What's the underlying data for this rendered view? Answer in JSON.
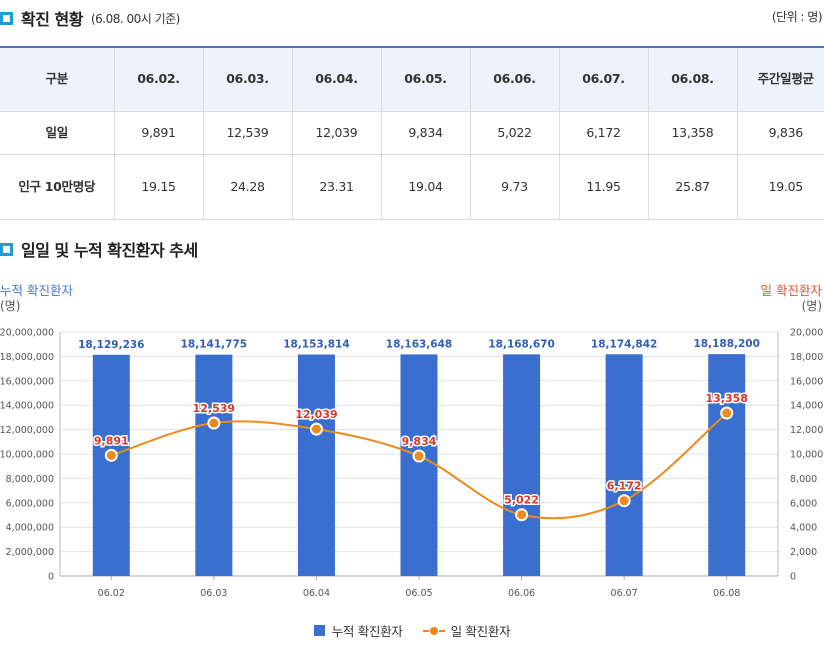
{
  "section1": {
    "title": "확진 현황",
    "subtitle": "(6.08. 00시 기준)",
    "unit": "(단위 : 명)"
  },
  "table": {
    "headers": [
      "구분",
      "06.02.",
      "06.03.",
      "06.04.",
      "06.05.",
      "06.06.",
      "06.07.",
      "06.08.",
      "주간일평균"
    ],
    "rows": [
      {
        "label": "일일",
        "values": [
          "9,891",
          "12,539",
          "12,039",
          "9,834",
          "5,022",
          "6,172",
          "13,358",
          "9,836"
        ]
      },
      {
        "label": "인구 10만명당",
        "values": [
          "19.15",
          "24.28",
          "23.31",
          "19.04",
          "9.73",
          "11.95",
          "25.87",
          "19.05"
        ]
      }
    ]
  },
  "section2": {
    "title": "일일 및 누적 확진환자 추세"
  },
  "colors": {
    "bar": "#3a6fcf",
    "line": "#ee8a19",
    "left_axis": "#4a74c4",
    "right_axis": "#e2542c",
    "bar_label": "#2f5fb7",
    "point_label": "#d23a2a",
    "icon": "#1e9bd7"
  },
  "chart_data": {
    "type": "bar+line",
    "categories": [
      "06.02",
      "06.03",
      "06.04",
      "06.05",
      "06.06",
      "06.07",
      "06.08"
    ],
    "series": [
      {
        "name": "누적 확진환자",
        "type": "bar",
        "axis": "left",
        "values": [
          18129236,
          18141775,
          18153814,
          18163648,
          18168670,
          18174842,
          18188200
        ],
        "labels": [
          "18,129,236",
          "18,141,775",
          "18,153,814",
          "18,163,648",
          "18,168,670",
          "18,174,842",
          "18,188,200"
        ]
      },
      {
        "name": "일 확진환자",
        "type": "line",
        "axis": "right",
        "values": [
          9891,
          12539,
          12039,
          9834,
          5022,
          6172,
          13358
        ],
        "labels": [
          "9,891",
          "12,539",
          "12,039",
          "9,834",
          "5,022",
          "6,172",
          "13,358"
        ]
      }
    ],
    "left_axis": {
      "title": "누적 확진환자",
      "unit": "(명)",
      "range": [
        0,
        20000000
      ],
      "ticks": [
        "0",
        "2,000,000",
        "4,000,000",
        "6,000,000",
        "8,000,000",
        "10,000,000",
        "12,000,000",
        "14,000,000",
        "16,000,000",
        "18,000,000",
        "20,000,000"
      ]
    },
    "right_axis": {
      "title": "일 확진환자",
      "unit": "(명)",
      "range": [
        0,
        20000
      ],
      "ticks": [
        "0",
        "2,000",
        "4,000",
        "6,000",
        "8,000",
        "10,000",
        "12,000",
        "14,000",
        "16,000",
        "18,000",
        "20,000"
      ]
    },
    "legend": [
      "누적 확진환자",
      "일 확진환자"
    ],
    "grid": true
  }
}
